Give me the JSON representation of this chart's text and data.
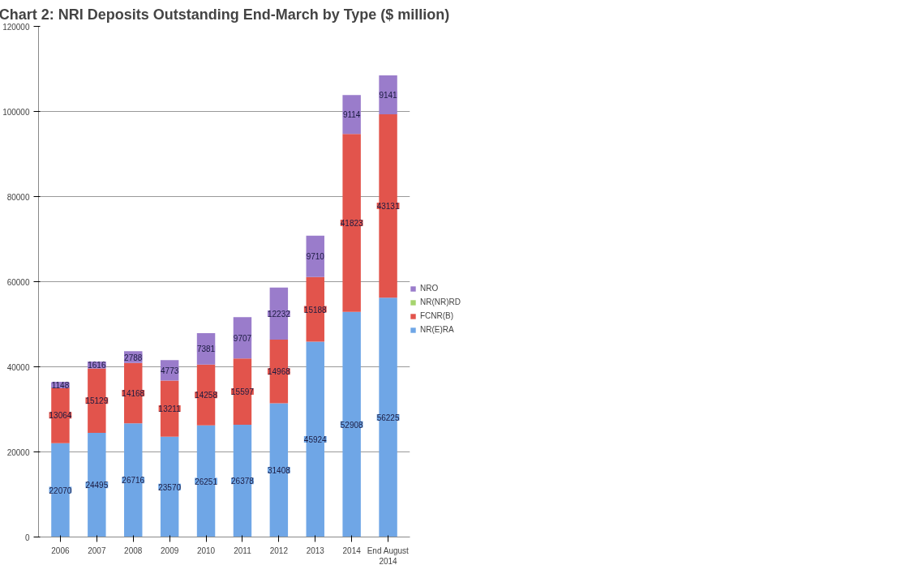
{
  "chart_data": {
    "type": "bar",
    "title": "Chart 2: NRI Deposits Outstanding End-March by Type ($ million)",
    "categories": [
      "2006",
      "2007",
      "2008",
      "2009",
      "2010",
      "2011",
      "2012",
      "2013",
      "2014",
      "End August\n2014"
    ],
    "stacked": true,
    "grid": "y",
    "legend": "right",
    "ylim": [
      0,
      120000
    ],
    "yticks": [
      0,
      20000,
      40000,
      60000,
      80000,
      100000,
      120000
    ],
    "series": [
      {
        "name": "NR(E)RA",
        "color": "#6fa6e6",
        "values": [
          22070,
          24495,
          26716,
          23570,
          26251,
          26378,
          31408,
          45924,
          52908,
          56225
        ],
        "value_labels": [
          "22070",
          "24495",
          "26716",
          "23570",
          "26251",
          "26378",
          "31408",
          "45924",
          "52908",
          "56225"
        ]
      },
      {
        "name": "FCNR(B)",
        "color": "#e2544c",
        "values": [
          13064,
          15129,
          14168,
          13211,
          14258,
          15597,
          14968,
          15188,
          41823,
          43131
        ],
        "value_labels": [
          "13064",
          "15129",
          "14168",
          "13211",
          "14258",
          "15597",
          "14968",
          "15188",
          "41823",
          "43131"
        ]
      },
      {
        "name": "NR(NR)RD",
        "color": "#a6d46e",
        "values": [
          0,
          0,
          0,
          0,
          0,
          0,
          0,
          0,
          0,
          0
        ],
        "value_labels": [
          null,
          null,
          null,
          null,
          null,
          null,
          null,
          null,
          null,
          null
        ]
      },
      {
        "name": "NRO",
        "color": "#9a7ccb",
        "values": [
          1148,
          1616,
          2788,
          4773,
          7381,
          9707,
          12232,
          9710,
          9114,
          9141
        ],
        "value_labels": [
          "1148",
          "1616",
          "2788",
          "4773",
          "7381",
          "9707",
          "12232",
          "9710",
          "9114",
          "9141"
        ]
      }
    ]
  }
}
